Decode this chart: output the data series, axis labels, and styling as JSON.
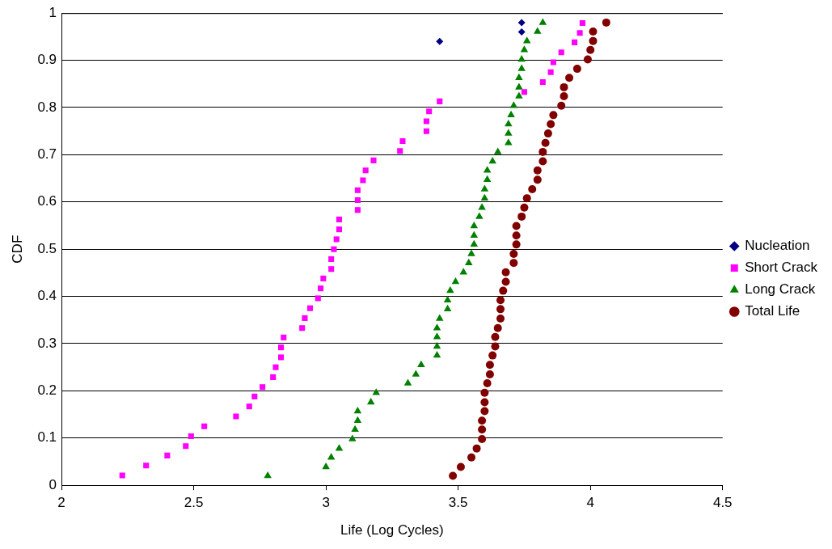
{
  "chart_data": {
    "type": "scatter",
    "xlabel": "Life (Log Cycles)",
    "ylabel": "CDF",
    "xlim": [
      2,
      4.5
    ],
    "xticks": [
      2,
      2.5,
      3,
      3.5,
      4,
      4.5
    ],
    "ylim": [
      0,
      1
    ],
    "yticks": [
      0,
      0.1,
      0.2,
      0.3,
      0.4,
      0.5,
      0.6,
      0.7,
      0.8,
      0.9,
      1
    ],
    "grid": "y",
    "legend": "right",
    "series": [
      {
        "name": "Nucleation",
        "color": "#000080",
        "marker": "diamond",
        "x": [
          3.43,
          3.74,
          3.74
        ],
        "values": [
          0.94,
          0.96,
          0.98
        ]
      },
      {
        "name": "Short Crack",
        "color": "#ff00ff",
        "marker": "square",
        "x": [
          2.23,
          2.32,
          2.4,
          2.47,
          2.49,
          2.54,
          2.66,
          2.71,
          2.73,
          2.76,
          2.8,
          2.81,
          2.83,
          2.83,
          2.84,
          2.91,
          2.92,
          2.94,
          2.97,
          2.98,
          2.99,
          3.02,
          3.02,
          3.03,
          3.04,
          3.05,
          3.05,
          3.12,
          3.12,
          3.12,
          3.14,
          3.15,
          3.18,
          3.28,
          3.29,
          3.38,
          3.38,
          3.39,
          3.43,
          3.75,
          3.82,
          3.85,
          3.86,
          3.89,
          3.94,
          3.96,
          3.97
        ],
        "values": [
          0.021,
          0.042,
          0.063,
          0.083,
          0.104,
          0.125,
          0.146,
          0.167,
          0.188,
          0.208,
          0.229,
          0.25,
          0.271,
          0.292,
          0.313,
          0.333,
          0.354,
          0.375,
          0.396,
          0.417,
          0.438,
          0.458,
          0.479,
          0.5,
          0.521,
          0.542,
          0.563,
          0.583,
          0.604,
          0.625,
          0.646,
          0.667,
          0.688,
          0.708,
          0.729,
          0.75,
          0.771,
          0.792,
          0.813,
          0.833,
          0.854,
          0.875,
          0.896,
          0.917,
          0.938,
          0.958,
          0.979
        ]
      },
      {
        "name": "Long Crack",
        "color": "#008000",
        "marker": "triangle",
        "x": [
          2.78,
          3.0,
          3.02,
          3.05,
          3.1,
          3.11,
          3.12,
          3.12,
          3.17,
          3.19,
          3.31,
          3.34,
          3.36,
          3.42,
          3.42,
          3.42,
          3.42,
          3.43,
          3.46,
          3.46,
          3.47,
          3.49,
          3.52,
          3.54,
          3.55,
          3.56,
          3.56,
          3.56,
          3.58,
          3.59,
          3.6,
          3.6,
          3.61,
          3.61,
          3.63,
          3.65,
          3.69,
          3.69,
          3.69,
          3.7,
          3.71,
          3.73,
          3.73,
          3.73,
          3.74,
          3.74,
          3.75,
          3.76,
          3.8,
          3.82
        ],
        "values": [
          0.02,
          0.039,
          0.059,
          0.078,
          0.098,
          0.118,
          0.137,
          0.157,
          0.176,
          0.196,
          0.216,
          0.235,
          0.255,
          0.275,
          0.294,
          0.314,
          0.333,
          0.353,
          0.373,
          0.392,
          0.412,
          0.431,
          0.451,
          0.471,
          0.49,
          0.51,
          0.529,
          0.549,
          0.569,
          0.588,
          0.608,
          0.627,
          0.647,
          0.667,
          0.686,
          0.706,
          0.725,
          0.745,
          0.765,
          0.784,
          0.804,
          0.824,
          0.843,
          0.863,
          0.882,
          0.902,
          0.922,
          0.941,
          0.961,
          0.98
        ]
      },
      {
        "name": "Total Life",
        "color": "#800000",
        "marker": "circle",
        "x": [
          3.48,
          3.51,
          3.55,
          3.57,
          3.59,
          3.59,
          3.59,
          3.6,
          3.6,
          3.6,
          3.61,
          3.62,
          3.62,
          3.63,
          3.64,
          3.64,
          3.65,
          3.66,
          3.66,
          3.66,
          3.67,
          3.68,
          3.68,
          3.71,
          3.71,
          3.72,
          3.72,
          3.72,
          3.74,
          3.75,
          3.76,
          3.78,
          3.8,
          3.8,
          3.82,
          3.82,
          3.83,
          3.84,
          3.85,
          3.86,
          3.89,
          3.9,
          3.9,
          3.92,
          3.95,
          3.99,
          4.0,
          4.01,
          4.01,
          4.06
        ],
        "values": [
          0.02,
          0.039,
          0.059,
          0.078,
          0.098,
          0.118,
          0.137,
          0.157,
          0.176,
          0.196,
          0.216,
          0.235,
          0.255,
          0.275,
          0.294,
          0.314,
          0.333,
          0.353,
          0.373,
          0.392,
          0.412,
          0.431,
          0.451,
          0.471,
          0.49,
          0.51,
          0.529,
          0.549,
          0.569,
          0.588,
          0.608,
          0.627,
          0.647,
          0.667,
          0.686,
          0.706,
          0.725,
          0.745,
          0.765,
          0.784,
          0.804,
          0.824,
          0.843,
          0.863,
          0.882,
          0.902,
          0.922,
          0.941,
          0.961,
          0.98
        ]
      }
    ]
  }
}
